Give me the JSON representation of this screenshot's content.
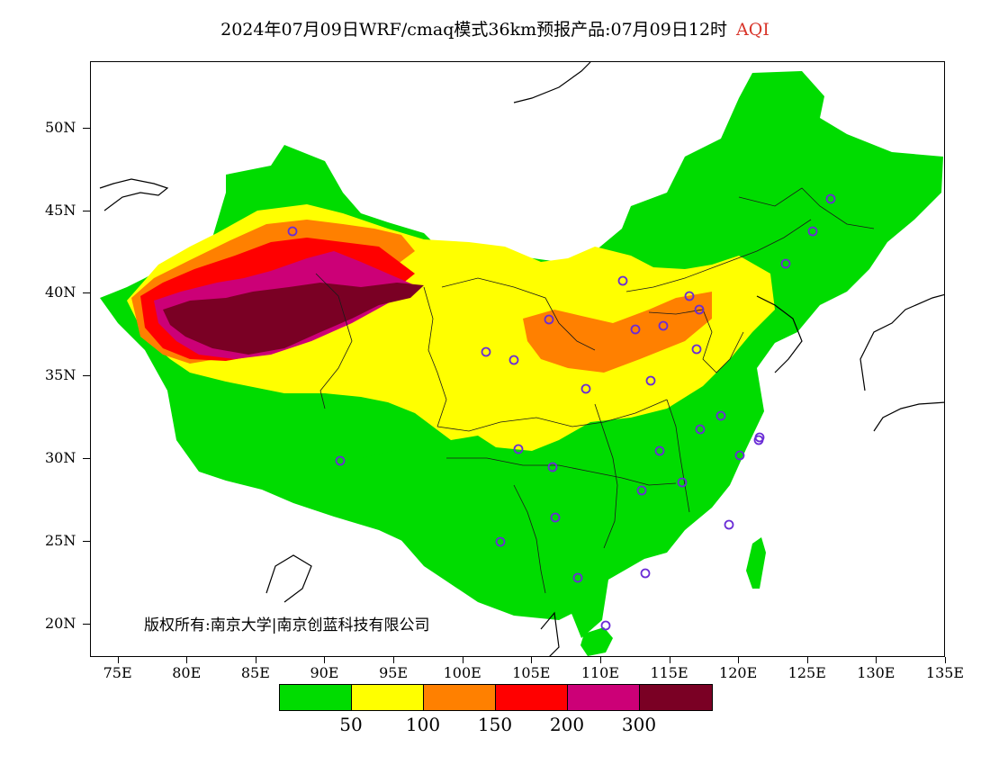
{
  "title": {
    "main": "2024年07月09日WRF/cmaq模式36km预报产品:07月09日12时",
    "variable": "AQI",
    "variable_color": "#d8352a"
  },
  "map": {
    "projection": "lat-lon",
    "lon_range": [
      73,
      135
    ],
    "lat_range": [
      18,
      54
    ],
    "lat_labels": [
      {
        "text": "50N",
        "value": 50
      },
      {
        "text": "45N",
        "value": 45
      },
      {
        "text": "40N",
        "value": 40
      },
      {
        "text": "35N",
        "value": 35
      },
      {
        "text": "30N",
        "value": 30
      },
      {
        "text": "25N",
        "value": 25
      },
      {
        "text": "20N",
        "value": 20
      }
    ],
    "lon_labels": [
      {
        "text": "75E",
        "value": 75
      },
      {
        "text": "80E",
        "value": 80
      },
      {
        "text": "85E",
        "value": 85
      },
      {
        "text": "90E",
        "value": 90
      },
      {
        "text": "95E",
        "value": 95
      },
      {
        "text": "100E",
        "value": 100
      },
      {
        "text": "105E",
        "value": 105
      },
      {
        "text": "110E",
        "value": 110
      },
      {
        "text": "115E",
        "value": 115
      },
      {
        "text": "120E",
        "value": 120
      },
      {
        "text": "125E",
        "value": 125
      },
      {
        "text": "130E",
        "value": 130
      },
      {
        "text": "135E",
        "value": 135
      }
    ],
    "station_marker_color": "#6a2cd6",
    "copyright": "版权所有:南京大学|南京创蓝科技有限公司"
  },
  "legend": {
    "colors": [
      "#00dc00",
      "#ffff00",
      "#ff8000",
      "#ff0000",
      "#cc0077",
      "#7a0024"
    ],
    "breaks": [
      "50",
      "100",
      "150",
      "200",
      "300"
    ]
  }
}
